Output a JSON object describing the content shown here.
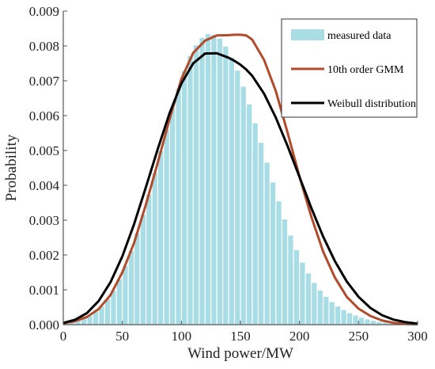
{
  "chart_data": {
    "type": "bar",
    "xlabel": "Wind power/MW",
    "ylabel": "Probability",
    "xlim": [
      0,
      300
    ],
    "ylim": [
      0,
      0.009
    ],
    "x_ticks": [
      "0",
      "50",
      "100",
      "150",
      "200",
      "250",
      "300"
    ],
    "y_ticks": [
      "0.000",
      "0.001",
      "0.002",
      "0.003",
      "0.004",
      "0.005",
      "0.006",
      "0.007",
      "0.008",
      "0.009"
    ],
    "legend_position": "top-right",
    "grid": false,
    "series": [
      {
        "name": "measured data",
        "kind": "histogram",
        "color": "#a9dde6",
        "bin_width": 5,
        "bin_starts": [
          0,
          5,
          10,
          15,
          20,
          25,
          30,
          35,
          40,
          45,
          50,
          55,
          60,
          65,
          70,
          75,
          80,
          85,
          90,
          95,
          100,
          105,
          110,
          115,
          120,
          125,
          130,
          135,
          140,
          145,
          150,
          155,
          160,
          165,
          170,
          175,
          180,
          185,
          190,
          195,
          200,
          205,
          210,
          215,
          220,
          225,
          230,
          235,
          240,
          245,
          250,
          255,
          260,
          265,
          270,
          275,
          280,
          285,
          290,
          295
        ],
        "values": [
          3e-05,
          6e-05,
          0.00011,
          0.00017,
          0.00025,
          0.00037,
          0.00052,
          0.00072,
          0.00098,
          0.0013,
          0.00168,
          0.00212,
          0.00262,
          0.00316,
          0.00374,
          0.00435,
          0.00498,
          0.0056,
          0.00621,
          0.00678,
          0.00728,
          0.00771,
          0.00802,
          0.00823,
          0.00834,
          0.00832,
          0.00821,
          0.00798,
          0.00767,
          0.00729,
          0.00683,
          0.00632,
          0.00578,
          0.00522,
          0.00465,
          0.00408,
          0.00354,
          0.00302,
          0.00256,
          0.00214,
          0.00178,
          0.00147,
          0.0012,
          0.00098,
          0.0008,
          0.00065,
          0.00052,
          0.00042,
          0.00033,
          0.00026,
          0.0002,
          0.00015,
          0.00011,
          8e-05,
          6e-05,
          4e-05,
          3e-05,
          2e-05,
          1e-05,
          1e-05
        ]
      },
      {
        "name": "10th order GMM",
        "kind": "line",
        "color": "#b34a2a",
        "x": [
          0,
          10,
          20,
          30,
          40,
          50,
          60,
          70,
          80,
          90,
          100,
          110,
          120,
          130,
          140,
          145,
          150,
          155,
          160,
          170,
          180,
          190,
          200,
          210,
          220,
          230,
          240,
          250,
          260,
          270,
          280,
          290,
          300
        ],
        "y": [
          4e-05,
          0.0001,
          0.00022,
          0.00045,
          0.00085,
          0.0015,
          0.00235,
          0.00345,
          0.00465,
          0.0059,
          0.00705,
          0.0078,
          0.00815,
          0.0083,
          0.00831,
          0.00832,
          0.00832,
          0.0083,
          0.00818,
          0.0076,
          0.0067,
          0.0055,
          0.00425,
          0.0031,
          0.0021,
          0.00135,
          0.0008,
          0.00046,
          0.00025,
          0.00012,
          5e-05,
          2e-05,
          1e-05
        ]
      },
      {
        "name": "Weibull distribution",
        "kind": "line",
        "color": "#000000",
        "x": [
          0,
          10,
          20,
          30,
          40,
          50,
          60,
          70,
          80,
          90,
          100,
          110,
          120,
          130,
          140,
          145,
          150,
          155,
          160,
          170,
          180,
          190,
          200,
          210,
          220,
          230,
          240,
          250,
          260,
          270,
          280,
          290,
          300
        ],
        "y": [
          5e-05,
          0.00014,
          0.00033,
          0.00068,
          0.00122,
          0.00196,
          0.00289,
          0.00395,
          0.00504,
          0.00607,
          0.00692,
          0.0075,
          0.00778,
          0.00779,
          0.00766,
          0.00757,
          0.00746,
          0.00732,
          0.00714,
          0.00663,
          0.00594,
          0.00512,
          0.00424,
          0.00335,
          0.00253,
          0.00182,
          0.00124,
          0.0008,
          0.00048,
          0.00027,
          0.00014,
          7e-05,
          3e-05
        ]
      }
    ]
  }
}
